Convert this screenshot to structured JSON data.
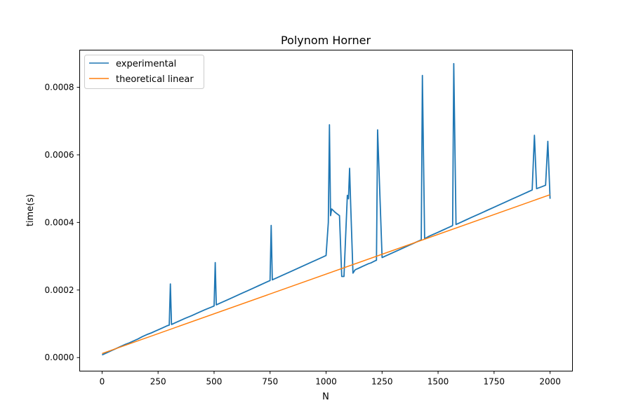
{
  "chart_data": {
    "type": "line",
    "title": "Polynom Horner",
    "xlabel": "N",
    "ylabel": "time(s)",
    "xlim": [
      -100,
      2100
    ],
    "ylim": [
      -4e-05,
      0.00091
    ],
    "xticks": [
      0,
      250,
      500,
      750,
      1000,
      1250,
      1500,
      1750,
      2000
    ],
    "xtick_labels": [
      "0",
      "250",
      "500",
      "750",
      "1000",
      "1250",
      "1500",
      "1750",
      "2000"
    ],
    "yticks": [
      0.0,
      0.0002,
      0.0004,
      0.0006,
      0.0008
    ],
    "ytick_labels": [
      "0.0000",
      "0.0002",
      "0.0004",
      "0.0006",
      "0.0008"
    ],
    "legend_position": "top-left",
    "grid": false,
    "series": [
      {
        "name": "experimental",
        "color": "#1f77b4",
        "x": [
          0,
          20,
          40,
          60,
          80,
          100,
          120,
          140,
          160,
          180,
          200,
          220,
          240,
          250,
          270,
          290,
          300,
          305,
          310,
          330,
          350,
          370,
          400,
          430,
          460,
          490,
          500,
          505,
          510,
          530,
          560,
          590,
          620,
          650,
          680,
          700,
          720,
          740,
          750,
          755,
          760,
          780,
          810,
          840,
          870,
          900,
          930,
          960,
          990,
          1000,
          1010,
          1015,
          1020,
          1025,
          1040,
          1060,
          1070,
          1080,
          1095,
          1100,
          1105,
          1110,
          1120,
          1125,
          1130,
          1150,
          1170,
          1190,
          1200,
          1220,
          1225,
          1230,
          1250,
          1270,
          1300,
          1330,
          1360,
          1390,
          1400,
          1420,
          1425,
          1430,
          1440,
          1460,
          1480,
          1500,
          1520,
          1540,
          1560,
          1565,
          1570,
          1580,
          1600,
          1620,
          1650,
          1680,
          1700,
          1720,
          1750,
          1780,
          1800,
          1830,
          1860,
          1890,
          1900,
          1920,
          1930,
          1940,
          1960,
          1980,
          1990,
          2000
        ],
        "y": [
          8e-06,
          1.4e-05,
          2e-05,
          2.6e-05,
          3.2e-05,
          3.8e-05,
          4.3e-05,
          4.9e-05,
          5.5e-05,
          6.2e-05,
          6.8e-05,
          7.3e-05,
          7.9e-05,
          8.2e-05,
          8.8e-05,
          9.4e-05,
          9.6e-05,
          0.000218,
          9.8e-05,
          0.000104,
          0.00011,
          0.000116,
          0.000124,
          0.000133,
          0.000142,
          0.00015,
          0.000153,
          0.000281,
          0.000156,
          0.000162,
          0.000171,
          0.00018,
          0.000189,
          0.000198,
          0.000207,
          0.000213,
          0.000219,
          0.000225,
          0.000228,
          0.000391,
          0.00023,
          0.000236,
          0.000245,
          0.000254,
          0.000263,
          0.000272,
          0.000281,
          0.00029,
          0.000299,
          0.000302,
          0.0004,
          0.000689,
          0.00042,
          0.00044,
          0.00043,
          0.00042,
          0.00024,
          0.00024,
          0.00048,
          0.00047,
          0.00056,
          0.00045,
          0.00025,
          0.000255,
          0.00026,
          0.000266,
          0.000272,
          0.000278,
          0.00028,
          0.000287,
          0.000288,
          0.000674,
          0.000296,
          0.000302,
          0.000311,
          0.00032,
          0.000329,
          0.000338,
          0.000341,
          0.000347,
          0.000348,
          0.000835,
          0.000352,
          0.000359,
          0.000365,
          0.000371,
          0.000377,
          0.000383,
          0.000389,
          0.000391,
          0.00087,
          0.000394,
          0.0004,
          0.000406,
          0.000415,
          0.000424,
          0.00043,
          0.000436,
          0.000445,
          0.000454,
          0.00046,
          0.000469,
          0.000478,
          0.000487,
          0.00049,
          0.000496,
          0.000658,
          0.0005,
          0.000505,
          0.00051,
          0.00064,
          0.00047
        ]
      },
      {
        "name": "theoretical linear",
        "color": "#ff7f0e",
        "x": [
          0,
          2000
        ],
        "y": [
          1.2e-05,
          0.000482
        ]
      }
    ]
  }
}
